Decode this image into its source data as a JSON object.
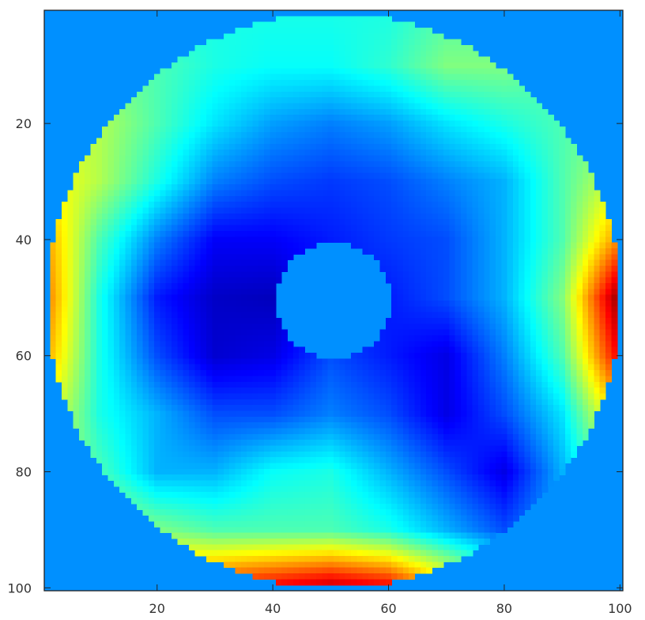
{
  "chart_data": {
    "type": "heatmap",
    "title": "",
    "xlabel": "",
    "ylabel": "",
    "xlim": [
      0.5,
      100.5
    ],
    "ylim": [
      0.5,
      100.5
    ],
    "y_direction": "reversed",
    "colormap": "jet",
    "color_range": [
      0,
      1
    ],
    "background_value": 0.266,
    "background_color": "#0090FF",
    "grid": false,
    "x_ticks": [
      "20",
      "40",
      "60",
      "80",
      "100"
    ],
    "y_ticks": [
      "20",
      "40",
      "60",
      "80",
      "100"
    ],
    "mask": {
      "shape": "annulus",
      "center": [
        50.5,
        50.5
      ],
      "outer_radius": 49.5,
      "inner_radius": 10
    },
    "coarse_grid_x": [
      0,
      10,
      20,
      30,
      40,
      50,
      60,
      70,
      80,
      90,
      100
    ],
    "coarse_grid_y": [
      0,
      10,
      20,
      30,
      40,
      50,
      60,
      70,
      80,
      90,
      100
    ],
    "coarse_values": [
      [
        0.4,
        0.4,
        0.4,
        0.4,
        0.4,
        0.4,
        0.4,
        0.45,
        0.45,
        0.45,
        0.45
      ],
      [
        0.5,
        0.5,
        0.45,
        0.4,
        0.38,
        0.38,
        0.42,
        0.5,
        0.5,
        0.45,
        0.45
      ],
      [
        0.6,
        0.55,
        0.45,
        0.35,
        0.28,
        0.25,
        0.28,
        0.35,
        0.4,
        0.45,
        0.5
      ],
      [
        0.65,
        0.55,
        0.4,
        0.25,
        0.2,
        0.18,
        0.2,
        0.25,
        0.3,
        0.45,
        0.6
      ],
      [
        0.75,
        0.45,
        0.25,
        0.12,
        0.12,
        0.15,
        0.18,
        0.2,
        0.3,
        0.45,
        0.75
      ],
      [
        0.8,
        0.4,
        0.15,
        0.07,
        0.06,
        0.15,
        0.15,
        0.2,
        0.3,
        0.5,
        1.0
      ],
      [
        0.75,
        0.4,
        0.2,
        0.08,
        0.1,
        0.2,
        0.15,
        0.1,
        0.25,
        0.45,
        0.9
      ],
      [
        0.65,
        0.4,
        0.3,
        0.2,
        0.2,
        0.25,
        0.2,
        0.1,
        0.2,
        0.35,
        0.7
      ],
      [
        0.55,
        0.45,
        0.3,
        0.3,
        0.38,
        0.4,
        0.3,
        0.2,
        0.1,
        0.3,
        0.55
      ],
      [
        0.6,
        0.55,
        0.5,
        0.45,
        0.45,
        0.45,
        0.4,
        0.3,
        0.2,
        0.3,
        0.5
      ],
      [
        0.7,
        0.75,
        0.8,
        0.85,
        0.9,
        0.95,
        0.9,
        0.7,
        0.5,
        0.4,
        0.4
      ]
    ]
  }
}
